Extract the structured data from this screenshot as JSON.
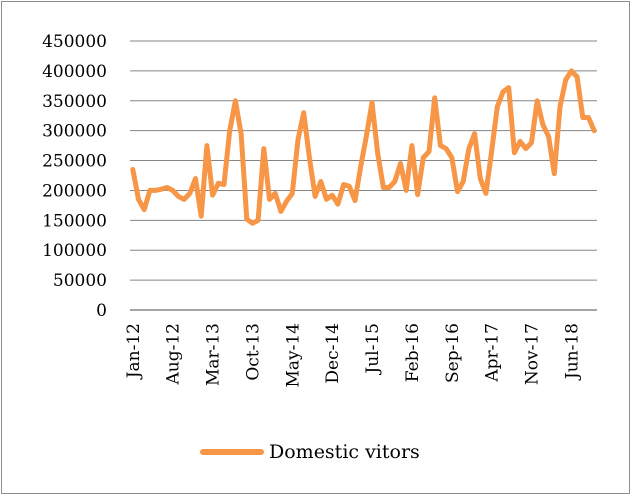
{
  "chart_data": {
    "type": "line",
    "title": "",
    "xlabel": "",
    "ylabel": "",
    "ylim": [
      0,
      450000
    ],
    "yticks": [
      "0",
      "50000",
      "100000",
      "150000",
      "200000",
      "250000",
      "300000",
      "350000",
      "400000",
      "450000"
    ],
    "xtick_labels": [
      "Jan-12",
      "Aug-12",
      "Mar-13",
      "Oct-13",
      "May-14",
      "Dec-14",
      "Jul-15",
      "Feb-16",
      "Sep-16",
      "Apr-17",
      "Nov-17",
      "Jun-18"
    ],
    "grid": "horizontal",
    "legend": "bottom",
    "colors": {
      "series": "#f79646",
      "grid": "#868686"
    },
    "series": [
      {
        "name": "Domestic vitors",
        "x": [
          "Jan-12",
          "Feb-12",
          "Mar-12",
          "Apr-12",
          "May-12",
          "Jun-12",
          "Jul-12",
          "Aug-12",
          "Sep-12",
          "Oct-12",
          "Nov-12",
          "Dec-12",
          "Jan-13",
          "Feb-13",
          "Mar-13",
          "Apr-13",
          "May-13",
          "Jun-13",
          "Jul-13",
          "Aug-13",
          "Sep-13",
          "Oct-13",
          "Nov-13",
          "Dec-13",
          "Jan-14",
          "Feb-14",
          "Mar-14",
          "Apr-14",
          "May-14",
          "Jun-14",
          "Jul-14",
          "Aug-14",
          "Sep-14",
          "Oct-14",
          "Nov-14",
          "Dec-14",
          "Jan-15",
          "Feb-15",
          "Mar-15",
          "Apr-15",
          "May-15",
          "Jun-15",
          "Jul-15",
          "Aug-15",
          "Sep-15",
          "Oct-15",
          "Nov-15",
          "Dec-15",
          "Jan-16",
          "Feb-16",
          "Mar-16",
          "Apr-16",
          "May-16",
          "Jun-16",
          "Jul-16",
          "Aug-16",
          "Sep-16",
          "Oct-16",
          "Nov-16",
          "Dec-16",
          "Jan-17",
          "Feb-17",
          "Mar-17",
          "Apr-17",
          "May-17",
          "Jun-17",
          "Jul-17",
          "Aug-17",
          "Sep-17",
          "Oct-17",
          "Nov-17",
          "Dec-17",
          "Jan-18",
          "Feb-18",
          "Mar-18",
          "Apr-18",
          "May-18",
          "Jun-18",
          "Jul-18",
          "Aug-18",
          "Sep-18",
          "Oct-18"
        ],
        "values": [
          235000,
          185000,
          168000,
          200000,
          200000,
          202000,
          205000,
          200000,
          190000,
          185000,
          195000,
          220000,
          157000,
          275000,
          192000,
          212000,
          210000,
          300000,
          350000,
          295000,
          152000,
          145000,
          150000,
          270000,
          185000,
          195000,
          165000,
          182000,
          195000,
          285000,
          330000,
          255000,
          190000,
          215000,
          185000,
          192000,
          177000,
          210000,
          207000,
          183000,
          240000,
          290000,
          347000,
          262000,
          205000,
          205000,
          215000,
          245000,
          200000,
          275000,
          193000,
          255000,
          265000,
          355000,
          275000,
          270000,
          255000,
          198000,
          215000,
          270000,
          295000,
          220000,
          195000,
          265000,
          340000,
          365000,
          372000,
          263000,
          282000,
          270000,
          280000,
          350000,
          310000,
          290000,
          228000,
          340000,
          385000,
          400000,
          390000,
          322000,
          322000,
          300000
        ]
      }
    ]
  }
}
